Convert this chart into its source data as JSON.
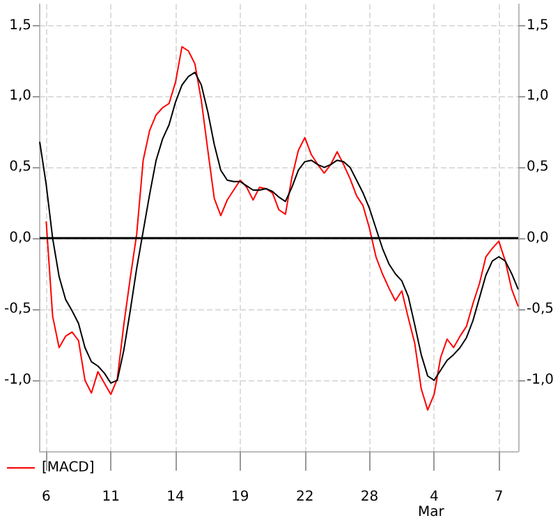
{
  "chart_data": {
    "type": "line",
    "categories": [
      null,
      "6",
      null,
      null,
      null,
      null,
      null,
      null,
      null,
      null,
      null,
      "11",
      null,
      null,
      null,
      null,
      null,
      null,
      null,
      null,
      null,
      "14",
      null,
      null,
      null,
      null,
      null,
      null,
      null,
      null,
      null,
      "19",
      null,
      null,
      null,
      null,
      null,
      null,
      null,
      null,
      null,
      "22",
      null,
      null,
      null,
      null,
      null,
      null,
      null,
      null,
      null,
      "28",
      null,
      null,
      null,
      null,
      null,
      null,
      null,
      null,
      null,
      "4",
      null,
      null,
      null,
      null,
      null,
      null,
      null,
      null,
      null,
      "7",
      null,
      null,
      null
    ],
    "ylim": [
      -1.5,
      1.65
    ],
    "yticks": [
      {
        "value": -1,
        "label": "-1,0"
      },
      {
        "value": -0.5,
        "label": "-0,5"
      },
      {
        "value": 0,
        "label": "0,0"
      },
      {
        "value": 0.5,
        "label": "0,5"
      },
      {
        "value": 1,
        "label": "1,0"
      },
      {
        "value": 1.5,
        "label": "1,5"
      }
    ],
    "y2lim": [
      -1.5,
      1.65
    ],
    "y2ticks": [
      {
        "value": -1,
        "label": "-1,0"
      },
      {
        "value": -0.5,
        "label": "-0,5"
      },
      {
        "value": 0,
        "label": "0,0"
      },
      {
        "value": 0.5,
        "label": "0,5"
      },
      {
        "value": 1,
        "label": "1,0"
      },
      {
        "value": 1.5,
        "label": "1,5"
      }
    ],
    "grid": true,
    "legend": "bottom left",
    "line_style": "solid",
    "ref_lines": [
      {
        "axis": "y",
        "value": 0,
        "color": "#000000"
      }
    ],
    "annotations": [
      "Mar"
    ],
    "series": [
      {
        "name": "[MACD]",
        "color": "#ff0000",
        "values": [
          null,
          0.12,
          -0.55,
          -0.77,
          -0.69,
          -0.66,
          -0.72,
          -1.0,
          -1.09,
          -0.94,
          -1.02,
          -1.1,
          -0.99,
          -0.61,
          -0.28,
          0.03,
          0.55,
          0.76,
          0.87,
          0.92,
          0.95,
          1.1,
          1.35,
          1.32,
          1.23,
          0.97,
          0.62,
          0.28,
          0.16,
          0.27,
          0.34,
          0.41,
          0.36,
          0.27,
          0.36,
          0.35,
          0.32,
          0.2,
          0.17,
          0.43,
          0.62,
          0.71,
          0.59,
          0.52,
          0.46,
          0.52,
          0.61,
          0.52,
          0.42,
          0.3,
          0.23,
          0.07,
          -0.13,
          -0.25,
          -0.35,
          -0.44,
          -0.37,
          -0.56,
          -0.74,
          -1.06,
          -1.21,
          -1.1,
          -0.84,
          -0.71,
          -0.77,
          -0.69,
          -0.62,
          -0.46,
          -0.32,
          -0.13,
          -0.07,
          -0.02,
          -0.16,
          -0.36,
          -0.48
        ]
      },
      {
        "color": "#000000",
        "values": [
          0.68,
          0.38,
          0,
          -0.27,
          -0.43,
          -0.51,
          -0.6,
          -0.77,
          -0.87,
          -0.9,
          -0.95,
          -1.02,
          -1.0,
          -0.79,
          -0.51,
          -0.21,
          0.05,
          0.31,
          0.55,
          0.7,
          0.8,
          0.96,
          1.08,
          1.14,
          1.17,
          1.08,
          0.89,
          0.66,
          0.48,
          0.41,
          0.4,
          0.4,
          0.37,
          0.34,
          0.34,
          0.35,
          0.33,
          0.29,
          0.26,
          0.36,
          0.48,
          0.54,
          0.55,
          0.52,
          0.5,
          0.52,
          0.55,
          0.54,
          0.5,
          0.41,
          0.32,
          0.21,
          0.07,
          -0.07,
          -0.18,
          -0.25,
          -0.3,
          -0.41,
          -0.61,
          -0.82,
          -0.97,
          -1.0,
          -0.93,
          -0.86,
          -0.82,
          -0.77,
          -0.7,
          -0.58,
          -0.42,
          -0.26,
          -0.16,
          -0.13,
          -0.16,
          -0.25,
          -0.36
        ]
      }
    ]
  }
}
